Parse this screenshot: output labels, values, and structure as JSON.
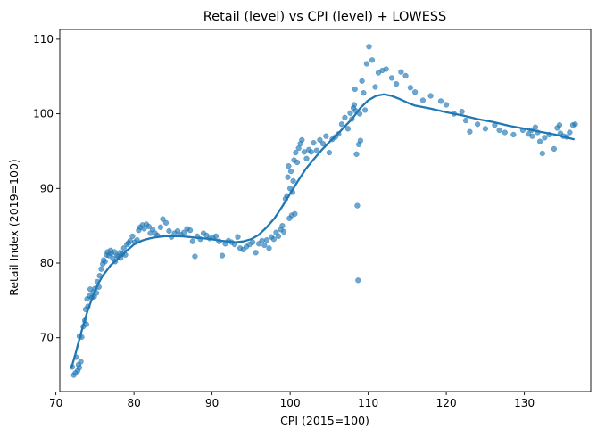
{
  "chart_data": {
    "type": "scatter",
    "title": "Retail (level) vs CPI (level) + LOWESS",
    "xlabel": "CPI (2015=100)",
    "ylabel": "Retail Index (2019=100)",
    "xlim": [
      70.5,
      138.5
    ],
    "ylim": [
      62.8,
      111.3
    ],
    "xticks": [
      "70",
      "80",
      "90",
      "100",
      "110",
      "120",
      "130"
    ],
    "yticks": [
      "70",
      "80",
      "90",
      "100",
      "110"
    ],
    "grid": false,
    "legend": "none",
    "colors": {
      "point": "#1f77b4",
      "line": "#1f77b4"
    },
    "series": [
      {
        "kind": "scatter",
        "points": [
          [
            72.1,
            66.1
          ],
          [
            72.3,
            65.0
          ],
          [
            72.5,
            65.3
          ],
          [
            72.6,
            67.4
          ],
          [
            72.8,
            65.6
          ],
          [
            72.9,
            66.4
          ],
          [
            73.0,
            66.0
          ],
          [
            73.2,
            66.8
          ],
          [
            73.0,
            70.2
          ],
          [
            73.3,
            70.1
          ],
          [
            73.5,
            71.5
          ],
          [
            73.7,
            72.3
          ],
          [
            73.8,
            73.8
          ],
          [
            73.9,
            71.8
          ],
          [
            74.0,
            75.2
          ],
          [
            74.1,
            74.2
          ],
          [
            74.3,
            75.6
          ],
          [
            74.4,
            76.5
          ],
          [
            74.6,
            75.4
          ],
          [
            74.8,
            76.1
          ],
          [
            74.9,
            75.5
          ],
          [
            75.0,
            76.6
          ],
          [
            75.2,
            76.0
          ],
          [
            75.3,
            77.5
          ],
          [
            75.5,
            76.8
          ],
          [
            75.6,
            78.3
          ],
          [
            75.8,
            79.2
          ],
          [
            76.0,
            79.9
          ],
          [
            76.1,
            80.4
          ],
          [
            76.3,
            80.2
          ],
          [
            76.5,
            81.1
          ],
          [
            76.6,
            81.5
          ],
          [
            76.8,
            81.0
          ],
          [
            77.0,
            81.7
          ],
          [
            77.1,
            81.3
          ],
          [
            77.3,
            80.6
          ],
          [
            77.5,
            81.5
          ],
          [
            77.6,
            80.2
          ],
          [
            77.8,
            81.0
          ],
          [
            78.0,
            80.9
          ],
          [
            78.2,
            81.4
          ],
          [
            78.3,
            80.7
          ],
          [
            78.5,
            81.2
          ],
          [
            78.7,
            82.0
          ],
          [
            78.9,
            81.1
          ],
          [
            79.1,
            82.5
          ],
          [
            79.3,
            82.7
          ],
          [
            79.5,
            83.0
          ],
          [
            79.8,
            83.6
          ],
          [
            80.1,
            82.8
          ],
          [
            80.4,
            83.1
          ],
          [
            80.6,
            84.4
          ],
          [
            80.8,
            84.8
          ],
          [
            81.1,
            85.1
          ],
          [
            81.3,
            84.6
          ],
          [
            81.6,
            85.2
          ],
          [
            81.9,
            84.9
          ],
          [
            82.1,
            84.0
          ],
          [
            82.4,
            84.5
          ],
          [
            82.7,
            84.0
          ],
          [
            83.0,
            83.7
          ],
          [
            83.4,
            84.8
          ],
          [
            83.7,
            85.9
          ],
          [
            84.1,
            85.4
          ],
          [
            84.5,
            84.3
          ],
          [
            84.8,
            83.5
          ],
          [
            85.2,
            84.0
          ],
          [
            85.6,
            84.3
          ],
          [
            86.0,
            83.8
          ],
          [
            86.4,
            84.1
          ],
          [
            86.8,
            84.6
          ],
          [
            87.2,
            84.4
          ],
          [
            87.5,
            82.9
          ],
          [
            87.8,
            80.9
          ],
          [
            88.1,
            83.6
          ],
          [
            88.5,
            83.2
          ],
          [
            88.9,
            84.0
          ],
          [
            89.3,
            83.7
          ],
          [
            89.7,
            83.3
          ],
          [
            90.1,
            83.4
          ],
          [
            90.5,
            83.6
          ],
          [
            90.9,
            82.9
          ],
          [
            91.3,
            81.0
          ],
          [
            91.7,
            82.6
          ],
          [
            92.1,
            83.0
          ],
          [
            92.5,
            82.8
          ],
          [
            92.9,
            82.5
          ],
          [
            93.3,
            83.5
          ],
          [
            93.6,
            82.0
          ],
          [
            94.0,
            81.8
          ],
          [
            94.4,
            82.2
          ],
          [
            94.8,
            82.5
          ],
          [
            95.2,
            82.8
          ],
          [
            95.6,
            81.4
          ],
          [
            96.0,
            82.6
          ],
          [
            96.4,
            83.0
          ],
          [
            96.7,
            82.4
          ],
          [
            97.0,
            83.1
          ],
          [
            97.3,
            82.0
          ],
          [
            97.6,
            83.5
          ],
          [
            97.9,
            83.2
          ],
          [
            98.2,
            84.1
          ],
          [
            98.5,
            83.6
          ],
          [
            98.8,
            84.5
          ],
          [
            99.0,
            85.0
          ],
          [
            99.2,
            84.2
          ],
          [
            99.4,
            88.6
          ],
          [
            99.6,
            89.0
          ],
          [
            99.7,
            91.5
          ],
          [
            99.8,
            93.0
          ],
          [
            99.9,
            86.0
          ],
          [
            100.0,
            90.0
          ],
          [
            100.1,
            92.3
          ],
          [
            100.2,
            86.4
          ],
          [
            100.3,
            89.5
          ],
          [
            100.4,
            91.0
          ],
          [
            100.5,
            93.8
          ],
          [
            100.6,
            86.6
          ],
          [
            100.7,
            94.8
          ],
          [
            100.9,
            93.5
          ],
          [
            101.1,
            95.4
          ],
          [
            101.3,
            96.0
          ],
          [
            101.5,
            96.5
          ],
          [
            101.8,
            94.9
          ],
          [
            102.1,
            94.0
          ],
          [
            102.4,
            95.2
          ],
          [
            102.7,
            94.9
          ],
          [
            103.0,
            96.1
          ],
          [
            103.4,
            95.1
          ],
          [
            103.8,
            96.5
          ],
          [
            104.2,
            96.0
          ],
          [
            104.6,
            97.0
          ],
          [
            105.0,
            94.8
          ],
          [
            105.4,
            96.6
          ],
          [
            105.8,
            96.9
          ],
          [
            106.2,
            97.3
          ],
          [
            106.6,
            98.6
          ],
          [
            107.0,
            99.5
          ],
          [
            107.4,
            98.0
          ],
          [
            107.7,
            100.1
          ],
          [
            107.9,
            99.3
          ],
          [
            108.1,
            100.8
          ],
          [
            108.2,
            101.2
          ],
          [
            108.3,
            103.3
          ],
          [
            108.4,
            100.4
          ],
          [
            108.5,
            94.6
          ],
          [
            108.6,
            87.7
          ],
          [
            108.7,
            77.7
          ],
          [
            108.8,
            95.9
          ],
          [
            108.9,
            100.0
          ],
          [
            109.0,
            96.4
          ],
          [
            109.2,
            104.4
          ],
          [
            109.4,
            102.8
          ],
          [
            109.6,
            100.5
          ],
          [
            109.8,
            106.7
          ],
          [
            110.1,
            109.0
          ],
          [
            110.5,
            107.2
          ],
          [
            110.9,
            103.6
          ],
          [
            111.3,
            105.5
          ],
          [
            111.8,
            105.8
          ],
          [
            112.3,
            106.0
          ],
          [
            113.0,
            104.8
          ],
          [
            113.6,
            104.0
          ],
          [
            114.2,
            105.6
          ],
          [
            114.8,
            105.1
          ],
          [
            115.4,
            103.5
          ],
          [
            116.0,
            102.9
          ],
          [
            117.0,
            101.8
          ],
          [
            118.0,
            102.4
          ],
          [
            119.3,
            101.7
          ],
          [
            120.0,
            101.2
          ],
          [
            121.0,
            100.0
          ],
          [
            122.0,
            100.3
          ],
          [
            122.5,
            99.1
          ],
          [
            123.0,
            97.6
          ],
          [
            124.0,
            98.6
          ],
          [
            125.0,
            98.0
          ],
          [
            126.2,
            98.5
          ],
          [
            126.8,
            97.8
          ],
          [
            127.5,
            97.5
          ],
          [
            128.6,
            97.2
          ],
          [
            129.8,
            97.8
          ],
          [
            130.5,
            97.3
          ],
          [
            131.0,
            97.0
          ],
          [
            131.4,
            98.2
          ],
          [
            131.7,
            97.5
          ],
          [
            132.0,
            96.3
          ],
          [
            132.3,
            94.7
          ],
          [
            132.6,
            96.8
          ],
          [
            133.2,
            97.2
          ],
          [
            133.8,
            95.3
          ],
          [
            134.2,
            98.1
          ],
          [
            134.6,
            97.4
          ],
          [
            135.0,
            97.0
          ],
          [
            135.4,
            96.9
          ],
          [
            135.8,
            97.5
          ],
          [
            136.2,
            98.5
          ],
          [
            136.5,
            98.6
          ],
          [
            134.5,
            98.5
          ],
          [
            130.9,
            97.8
          ]
        ]
      },
      {
        "kind": "line",
        "points": [
          [
            72.0,
            66.0
          ],
          [
            72.5,
            67.8
          ],
          [
            73.0,
            69.8
          ],
          [
            73.5,
            71.7
          ],
          [
            74.0,
            73.4
          ],
          [
            74.5,
            74.9
          ],
          [
            75.0,
            76.3
          ],
          [
            75.5,
            77.4
          ],
          [
            76.0,
            78.3
          ],
          [
            76.5,
            79.0
          ],
          [
            77.0,
            79.7
          ],
          [
            78.0,
            80.6
          ],
          [
            79.0,
            81.6
          ],
          [
            80.0,
            82.5
          ],
          [
            81.0,
            83.0
          ],
          [
            82.0,
            83.3
          ],
          [
            83.0,
            83.5
          ],
          [
            84.0,
            83.6
          ],
          [
            85.0,
            83.6
          ],
          [
            86.0,
            83.6
          ],
          [
            87.0,
            83.5
          ],
          [
            88.0,
            83.4
          ],
          [
            89.0,
            83.3
          ],
          [
            90.0,
            83.2
          ],
          [
            91.0,
            83.0
          ],
          [
            92.0,
            82.9
          ],
          [
            93.0,
            82.8
          ],
          [
            94.0,
            82.9
          ],
          [
            95.0,
            83.2
          ],
          [
            96.0,
            83.8
          ],
          [
            97.0,
            84.8
          ],
          [
            98.0,
            86.0
          ],
          [
            99.0,
            87.6
          ],
          [
            100.0,
            89.3
          ],
          [
            101.0,
            91.0
          ],
          [
            102.0,
            92.6
          ],
          [
            103.0,
            93.9
          ],
          [
            104.0,
            95.1
          ],
          [
            105.0,
            96.2
          ],
          [
            106.0,
            97.2
          ],
          [
            107.0,
            98.3
          ],
          [
            108.0,
            99.4
          ],
          [
            109.0,
            100.8
          ],
          [
            110.0,
            101.8
          ],
          [
            111.0,
            102.4
          ],
          [
            112.0,
            102.6
          ],
          [
            113.0,
            102.4
          ],
          [
            114.0,
            102.0
          ],
          [
            115.0,
            101.5
          ],
          [
            116.0,
            101.1
          ],
          [
            118.0,
            100.7
          ],
          [
            120.0,
            100.2
          ],
          [
            122.0,
            99.8
          ],
          [
            124.0,
            99.3
          ],
          [
            126.0,
            98.9
          ],
          [
            128.0,
            98.4
          ],
          [
            130.0,
            98.0
          ],
          [
            132.0,
            97.6
          ],
          [
            134.0,
            97.2
          ],
          [
            136.3,
            96.6
          ]
        ]
      }
    ]
  }
}
